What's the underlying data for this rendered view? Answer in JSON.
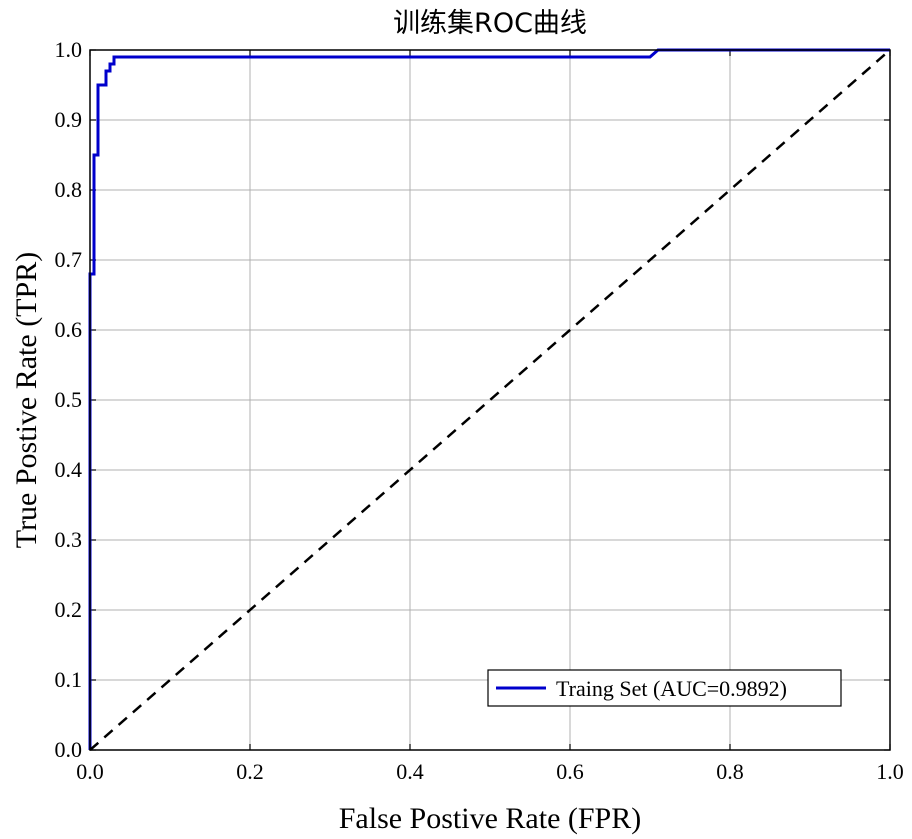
{
  "chart_data": {
    "type": "line",
    "title": "训练集ROC曲线",
    "xlabel": "False Postive Rate (FPR)",
    "ylabel": "True Postive Rate (TPR)",
    "xlim": [
      0.0,
      1.0
    ],
    "ylim": [
      0.0,
      1.0
    ],
    "xticks": [
      "0.0",
      "0.2",
      "0.4",
      "0.6",
      "0.8",
      "1.0"
    ],
    "yticks": [
      "0.0",
      "0.1",
      "0.2",
      "0.3",
      "0.4",
      "0.5",
      "0.6",
      "0.7",
      "0.8",
      "0.9",
      "1.0"
    ],
    "grid": true,
    "legend_position": "lower-right",
    "series": [
      {
        "name": "Traing Set (AUC=0.9892)",
        "color": "#0000cc",
        "style": "solid",
        "x": [
          0.0,
          0.0,
          0.005,
          0.005,
          0.01,
          0.01,
          0.015,
          0.015,
          0.02,
          0.02,
          0.025,
          0.025,
          0.03,
          0.03,
          0.7,
          0.71,
          0.71,
          1.0
        ],
        "y": [
          0.0,
          0.68,
          0.68,
          0.85,
          0.85,
          0.95,
          0.95,
          0.95,
          0.95,
          0.97,
          0.97,
          0.98,
          0.98,
          0.99,
          0.99,
          1.0,
          1.0,
          1.0
        ]
      },
      {
        "name": "",
        "color": "#000000",
        "style": "dashed",
        "x": [
          0.0,
          1.0
        ],
        "y": [
          0.0,
          1.0
        ]
      }
    ]
  }
}
